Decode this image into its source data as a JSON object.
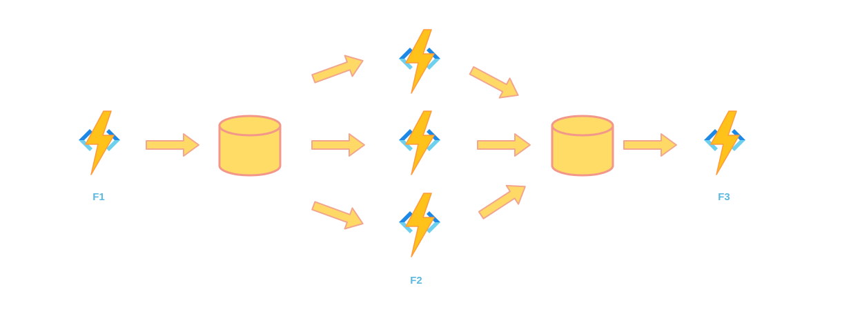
{
  "colors": {
    "background": "#ffffff",
    "bracket_dark": "#1e88e5",
    "bracket_light": "#6fd0ee",
    "bolt_fill": "#ffc21a",
    "bolt_stroke": "#ff9a3c",
    "bolt_shadow": "#f29b18",
    "storage_fill": "#ffdc66",
    "storage_stroke": "#f2978a",
    "arrow_fill": "#ffd966",
    "arrow_stroke": "#f2a58f",
    "label": "#5bb8e0"
  },
  "labels": {
    "f1": "F1",
    "f2": "F2",
    "f3": "F3"
  },
  "icons": {
    "function": "azure-function-icon",
    "storage": "storage-cylinder-icon",
    "arrow": "arrow-icon"
  }
}
